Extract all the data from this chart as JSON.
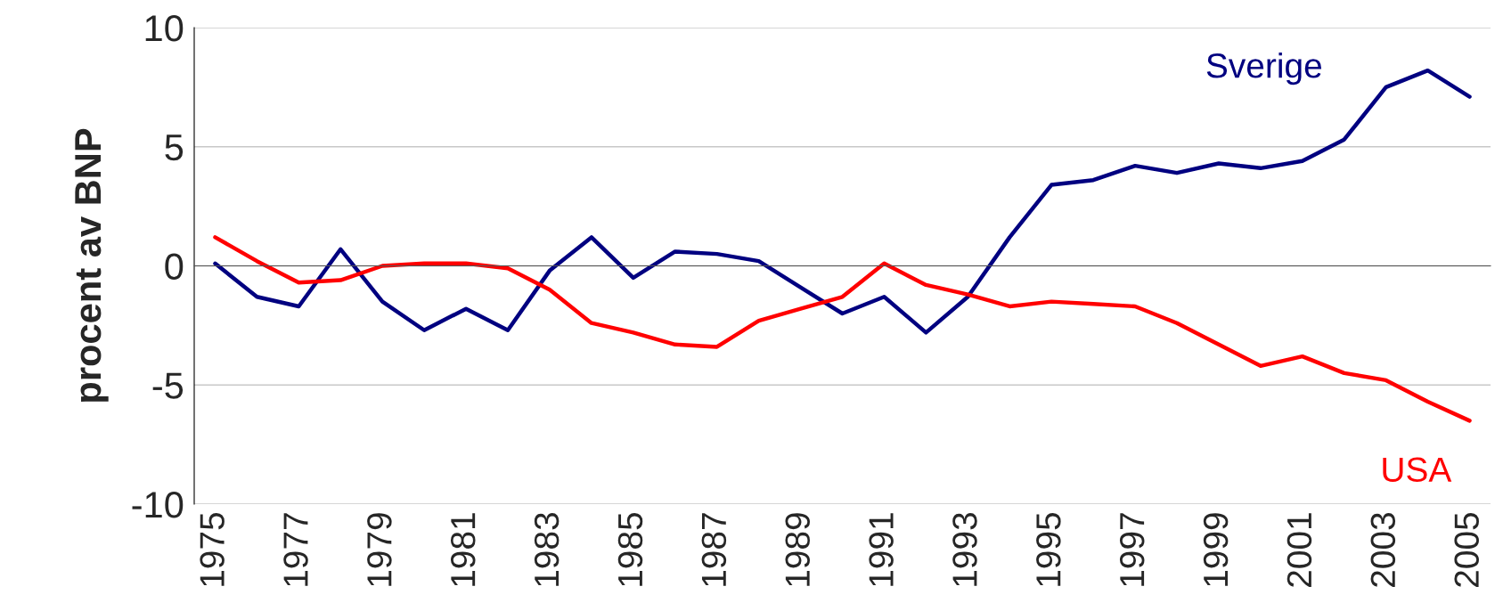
{
  "chart_data": {
    "type": "line",
    "ylabel": "procent av BNP",
    "categories": [
      "1975",
      null,
      "1977",
      null,
      "1979",
      null,
      "1981",
      null,
      "1983",
      null,
      "1985",
      null,
      "1987",
      null,
      "1989",
      null,
      "1991",
      null,
      "1993",
      null,
      "1995",
      null,
      "1997",
      null,
      "1999",
      null,
      "2001",
      null,
      "2003",
      null,
      "2005"
    ],
    "series": [
      {
        "name": "Sverige",
        "color": "#000080",
        "values": [
          0.1,
          -1.3,
          -1.7,
          0.7,
          -1.5,
          -2.7,
          -1.8,
          -2.7,
          -0.2,
          1.2,
          -0.5,
          0.6,
          0.5,
          0.2,
          -0.9,
          -2.0,
          -1.3,
          -2.8,
          -1.3,
          1.2,
          3.4,
          3.6,
          4.2,
          3.9,
          4.3,
          4.1,
          4.4,
          5.3,
          7.5,
          8.2,
          7.1
        ]
      },
      {
        "name": "USA",
        "color": "#ff0000",
        "values": [
          1.2,
          0.2,
          -0.7,
          -0.6,
          0.0,
          0.1,
          0.1,
          -0.1,
          -1.0,
          -2.4,
          -2.8,
          -3.3,
          -3.4,
          -2.3,
          -1.8,
          -1.3,
          0.1,
          -0.8,
          -1.2,
          -1.7,
          -1.5,
          -1.6,
          -1.7,
          -2.4,
          -3.3,
          -4.2,
          -3.8,
          -4.5,
          -4.8,
          -5.7,
          -6.5
        ]
      }
    ],
    "ylim": [
      -10,
      10
    ],
    "yticks": [
      -10,
      -5,
      0,
      5,
      10
    ],
    "grid": "y",
    "legend": false,
    "marker": "none",
    "line_style": "solid"
  }
}
